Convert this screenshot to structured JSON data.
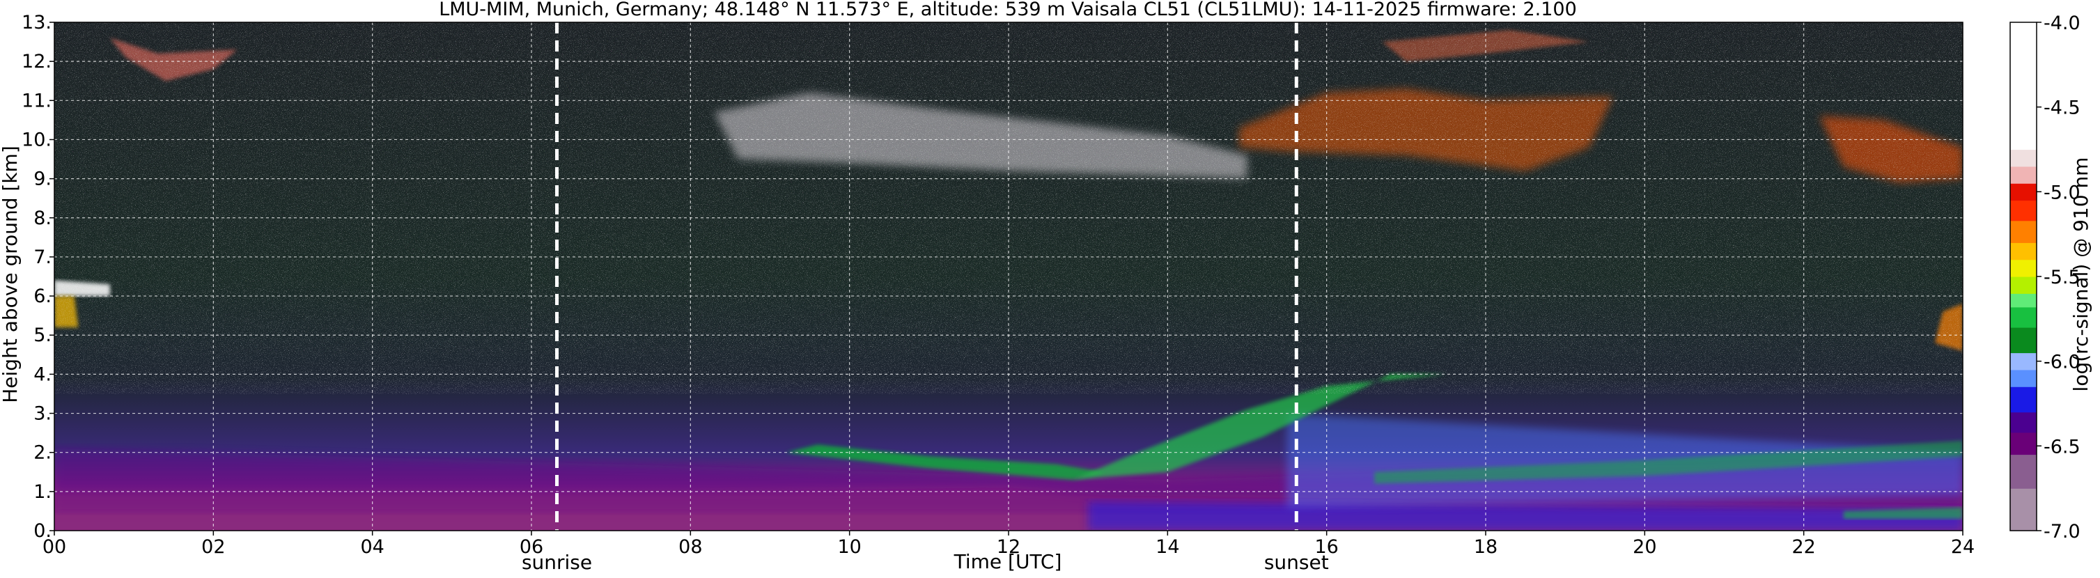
{
  "chart_data": {
    "type": "heatmap",
    "title": "LMU-MIM, Munich, Germany; 48.148° N 11.573° E, altitude: 539 m    Vaisala CL51 (CL51LMU): 14-11-2025    firmware: 2.100",
    "xlabel": "Time [UTC]",
    "ylabel": "Height above ground [km]",
    "xlim": [
      0,
      24
    ],
    "ylim": [
      0,
      13
    ],
    "x_ticks": [
      0,
      2,
      4,
      6,
      8,
      10,
      12,
      14,
      16,
      18,
      20,
      22,
      24
    ],
    "x_tick_labels": [
      "00",
      "02",
      "04",
      "06",
      "08",
      "10",
      "12",
      "14",
      "16",
      "18",
      "20",
      "22",
      "24"
    ],
    "y_ticks": [
      0,
      1,
      2,
      3,
      4,
      5,
      6,
      7,
      8,
      9,
      10,
      11,
      12,
      13
    ],
    "y_tick_labels": [
      "0.",
      "1.",
      "2.",
      "3.",
      "4.",
      "5.",
      "6.",
      "7.",
      "8.",
      "9.",
      "10.",
      "11.",
      "12.",
      "13."
    ],
    "grid": true,
    "colorbar": {
      "label": "log(rc-signal) @ 910 nm",
      "range": [
        -7.0,
        -4.0
      ],
      "ticks": [
        -7.0,
        -6.5,
        -6.0,
        -5.5,
        -5.0,
        -4.5,
        -4.0
      ],
      "tick_labels": [
        "-7.0",
        "-6.5",
        "-6.0",
        "-5.5",
        "-5.0",
        "-4.5",
        "-4.0"
      ],
      "colors": [
        {
          "level": -7.0,
          "color": "#a890a8"
        },
        {
          "level": -6.75,
          "color": "#8a5e90"
        },
        {
          "level": -6.55,
          "color": "#6a0078"
        },
        {
          "level": -6.42,
          "color": "#4b0090"
        },
        {
          "level": -6.3,
          "color": "#1a1ae6"
        },
        {
          "level": -6.15,
          "color": "#5a90ff"
        },
        {
          "level": -6.05,
          "color": "#99b8ff"
        },
        {
          "level": -5.95,
          "color": "#0a8a1e"
        },
        {
          "level": -5.8,
          "color": "#18c040"
        },
        {
          "level": -5.68,
          "color": "#60ec78"
        },
        {
          "level": -5.6,
          "color": "#b4f000"
        },
        {
          "level": -5.5,
          "color": "#f0f000"
        },
        {
          "level": -5.4,
          "color": "#ffc000"
        },
        {
          "level": -5.3,
          "color": "#ff8000"
        },
        {
          "level": -5.17,
          "color": "#ff3000"
        },
        {
          "level": -5.05,
          "color": "#e61000"
        },
        {
          "level": -4.95,
          "color": "#f0b4b4"
        },
        {
          "level": -4.85,
          "color": "#f0e0e0"
        },
        {
          "level": -4.75,
          "color": "#ffffff"
        },
        {
          "level": -4.0,
          "color": "#ffffff"
        }
      ]
    },
    "markers": [
      {
        "label": "sunrise",
        "x": 6.32
      },
      {
        "label": "sunset",
        "x": 15.62
      }
    ]
  }
}
